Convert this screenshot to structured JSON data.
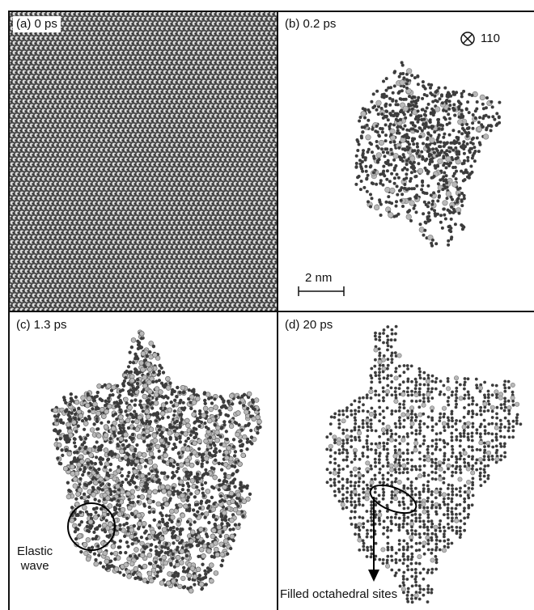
{
  "figure": {
    "panels": [
      {
        "label": "(a) 0 ps"
      },
      {
        "label": "(b) 0.2 ps"
      },
      {
        "label": "(c) 1.3 ps"
      },
      {
        "label": "(d) 20 ps"
      }
    ],
    "orientation_label": "110",
    "orientation_icon": "circle-times-icon",
    "scale_bar_label": "2 nm",
    "annotation_elastic": "Elastic\nwave",
    "annotation_filled": "Filled octahedral sites"
  },
  "colors": {
    "atom_dark": "#3c3c3c",
    "atom_light": "#b8b8b8",
    "frame": "#111111",
    "background": "#ffffff"
  }
}
